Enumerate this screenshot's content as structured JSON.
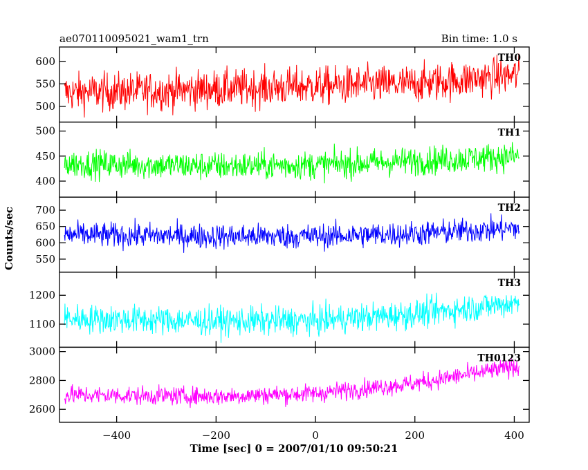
{
  "chart_data": {
    "type": "line",
    "title": "ae070110095021_wam1_trn",
    "bin_time_label": "Bin time: 1.0 s",
    "xlabel": "Time [sec] 0 = 2007/01/10 09:50:21",
    "ylabel": "Counts/sec",
    "xlim": [
      -515,
      430
    ],
    "x_ticks": [
      -400,
      -200,
      0,
      200,
      400
    ],
    "x_tick_labels": [
      "−400",
      "−200",
      "0",
      "200",
      "400"
    ],
    "x_range": [
      -505,
      410
    ],
    "grid": false,
    "series": [
      {
        "name": "TH0",
        "color": "#ff0000",
        "ylim": [
          465,
          632
        ],
        "y_ticks": [
          500,
          550,
          600
        ],
        "y_tick_labels": [
          "500",
          "550",
          "600"
        ],
        "trend": [
          [
            -505,
            530
          ],
          [
            -300,
            535
          ],
          [
            0,
            545
          ],
          [
            200,
            550
          ],
          [
            410,
            570
          ]
        ],
        "noise": 30
      },
      {
        "name": "TH1",
        "color": "#00ff00",
        "ylim": [
          368,
          518
        ],
        "y_ticks": [
          400,
          450,
          500
        ],
        "y_tick_labels": [
          "400",
          "450",
          "500"
        ],
        "trend": [
          [
            -505,
            435
          ],
          [
            -200,
            430
          ],
          [
            0,
            432
          ],
          [
            200,
            440
          ],
          [
            410,
            450
          ]
        ],
        "noise": 20
      },
      {
        "name": "TH2",
        "color": "#0000ff",
        "ylim": [
          510,
          740
        ],
        "y_ticks": [
          550,
          600,
          650,
          700
        ],
        "y_tick_labels": [
          "550",
          "600",
          "650",
          "700"
        ],
        "trend": [
          [
            -505,
            625
          ],
          [
            -200,
            620
          ],
          [
            0,
            620
          ],
          [
            200,
            628
          ],
          [
            410,
            645
          ]
        ],
        "noise": 27
      },
      {
        "name": "TH3",
        "color": "#00ffff",
        "ylim": [
          1020,
          1280
        ],
        "y_ticks": [
          1100,
          1200
        ],
        "y_tick_labels": [
          "1100",
          "1200"
        ],
        "trend": [
          [
            -505,
            1120
          ],
          [
            -200,
            1110
          ],
          [
            0,
            1112
          ],
          [
            200,
            1135
          ],
          [
            410,
            1175
          ]
        ],
        "noise": 35
      },
      {
        "name": "TH0123",
        "color": "#ff00ff",
        "ylim": [
          2510,
          3030
        ],
        "y_ticks": [
          2600,
          2800,
          3000
        ],
        "y_tick_labels": [
          "2600",
          "2800",
          "3000"
        ],
        "trend": [
          [
            -505,
            2700
          ],
          [
            -200,
            2690
          ],
          [
            0,
            2710
          ],
          [
            200,
            2780
          ],
          [
            410,
            2900
          ]
        ],
        "noise": 45
      }
    ]
  }
}
